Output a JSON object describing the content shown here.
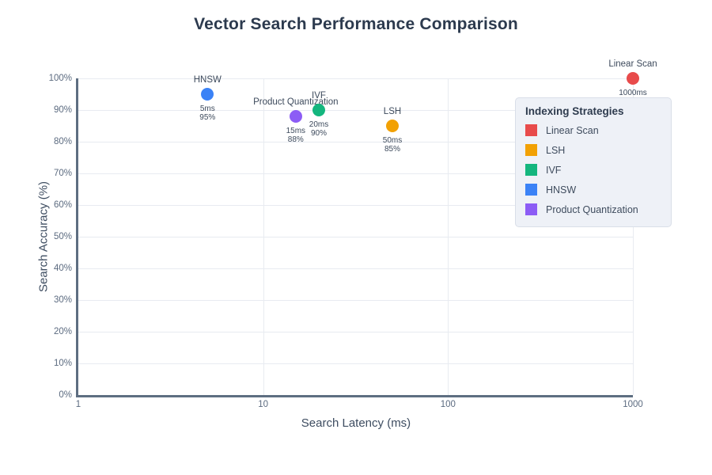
{
  "chart_data": {
    "type": "scatter",
    "title": "Vector Search Performance Comparison",
    "xlabel": "Search Latency (ms)",
    "ylabel": "Search Accuracy (%)",
    "x_scale": "log",
    "xlim": [
      1,
      1000
    ],
    "ylim": [
      0,
      100
    ],
    "grid": true,
    "x_ticks": [
      {
        "value": 1,
        "label": "1"
      },
      {
        "value": 10,
        "label": "10"
      },
      {
        "value": 100,
        "label": "100"
      },
      {
        "value": 1000,
        "label": "1000"
      }
    ],
    "y_ticks": [
      "0%",
      "10%",
      "20%",
      "30%",
      "40%",
      "50%",
      "60%",
      "70%",
      "80%",
      "90%",
      "100%"
    ],
    "legend": {
      "title": "Indexing Strategies",
      "position": "top-right"
    },
    "series": [
      {
        "name": "Linear Scan",
        "color": "#e84b4b",
        "latency_ms": 1000,
        "accuracy_pct": 100,
        "value_label": [
          "1000ms",
          "100%"
        ]
      },
      {
        "name": "LSH",
        "color": "#f2a104",
        "latency_ms": 50,
        "accuracy_pct": 85,
        "value_label": [
          "50ms",
          "85%"
        ]
      },
      {
        "name": "IVF",
        "color": "#14b67e",
        "latency_ms": 20,
        "accuracy_pct": 90,
        "value_label": [
          "20ms",
          "90%"
        ]
      },
      {
        "name": "HNSW",
        "color": "#3b82f6",
        "latency_ms": 5,
        "accuracy_pct": 95,
        "value_label": [
          "5ms",
          "95%"
        ]
      },
      {
        "name": "Product Quantization",
        "color": "#8c5cf5",
        "latency_ms": 15,
        "accuracy_pct": 88,
        "value_label": [
          "15ms",
          "88%"
        ]
      }
    ]
  }
}
